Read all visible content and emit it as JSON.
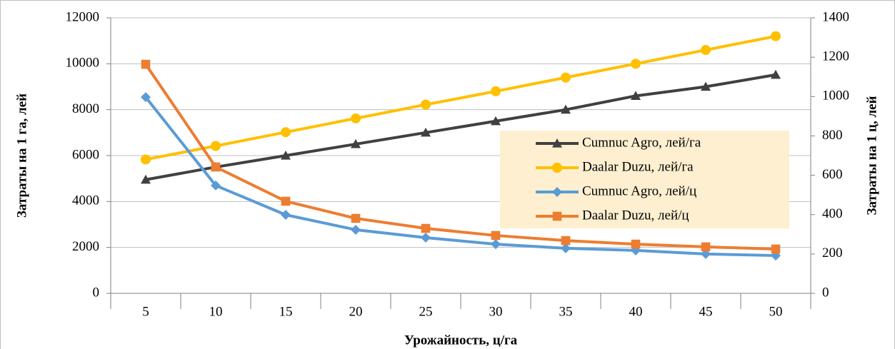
{
  "chart_data": {
    "type": "line",
    "xlabel": "Урожайность, ц/га",
    "ylabel": "Затраты на 1 га, лей",
    "y2label": "Затраты на 1 ц, лей",
    "categories": [
      "5",
      "10",
      "15",
      "20",
      "25",
      "30",
      "35",
      "40",
      "45",
      "50"
    ],
    "ylim": [
      0,
      12000
    ],
    "yticks": [
      0,
      2000,
      4000,
      6000,
      8000,
      10000,
      12000
    ],
    "y2lim": [
      0,
      1400
    ],
    "y2ticks": [
      0,
      200,
      400,
      600,
      800,
      1000,
      1200,
      1400
    ],
    "grid": true,
    "legend": "right",
    "series": [
      {
        "name": "Cumnuc Agro, лей/га",
        "color": "#404040",
        "marker": "triangle",
        "values": [
          4950,
          5500,
          6000,
          6500,
          7000,
          7500,
          8000,
          8600,
          9000,
          9520
        ]
      },
      {
        "name": "Daalar Duzu, лей/га",
        "color": "#ffc000",
        "marker": "circle",
        "values": [
          5830,
          6420,
          7020,
          7620,
          8220,
          8800,
          9400,
          10000,
          10600,
          11200
        ]
      },
      {
        "name": "Cumnuc Agro, лей/ц",
        "color": "#5b9bd5",
        "marker": "diamond",
        "axis": "y2",
        "values": [
          997,
          548,
          399,
          323,
          283,
          250,
          229,
          218,
          200,
          192
        ]
      },
      {
        "name": "Daalar Duzu, лей/ц",
        "color": "#ed7d31",
        "marker": "square",
        "axis": "y2",
        "values": [
          1164,
          642,
          468,
          381,
          330,
          294,
          268,
          250,
          236,
          225
        ]
      }
    ]
  }
}
